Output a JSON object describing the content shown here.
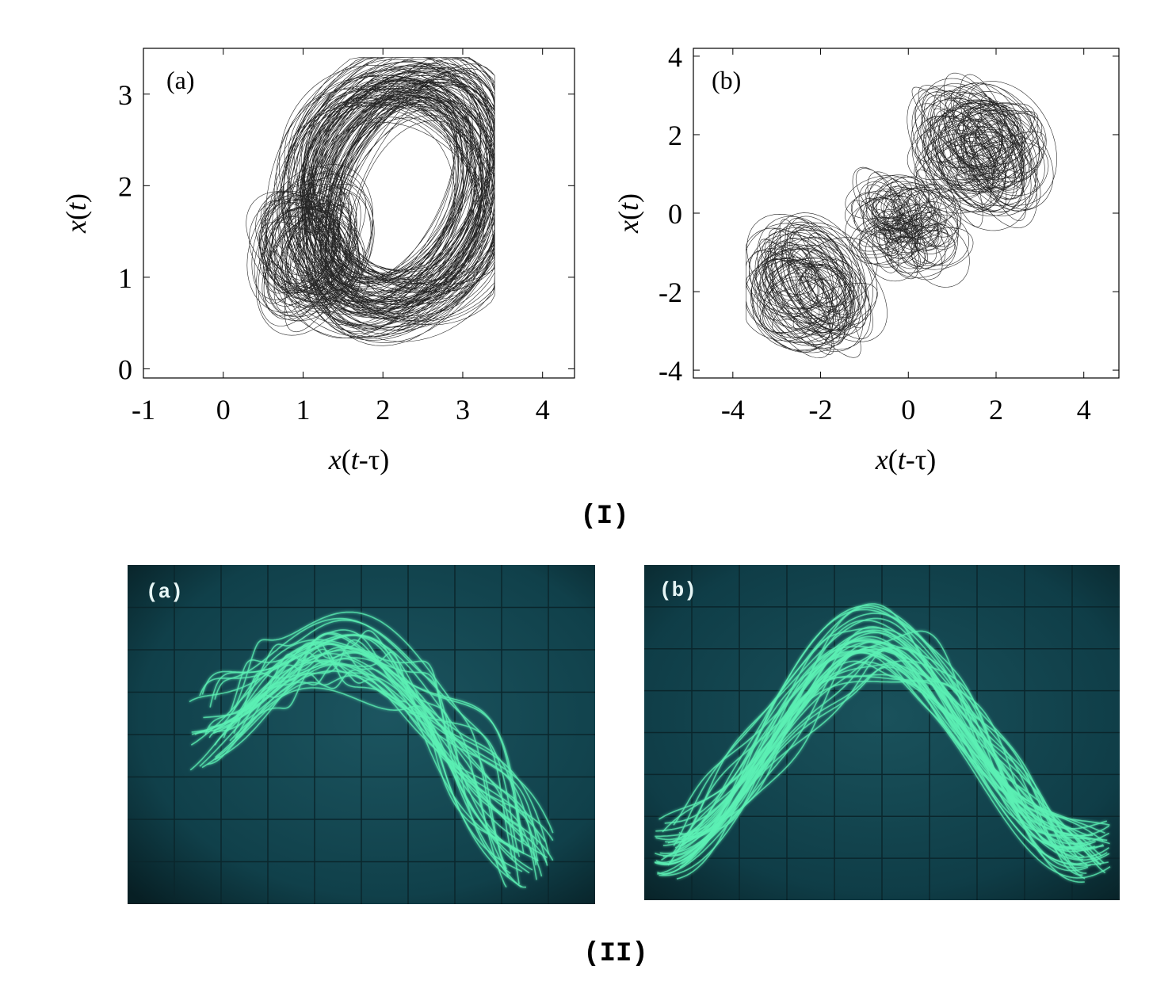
{
  "figure": {
    "part_I_label": "(I)",
    "part_II_label": "(II)"
  },
  "chart_data": [
    {
      "type": "line",
      "panel_label": "(a)",
      "xlabel_parts": [
        "x",
        "(",
        "t",
        "-τ)"
      ],
      "ylabel_parts": [
        "x",
        "(",
        "t",
        ")"
      ],
      "xlim": [
        -1,
        4.4
      ],
      "ylim": [
        -0.1,
        3.5
      ],
      "xticks": [
        "-1",
        "0",
        "1",
        "2",
        "3",
        "4"
      ],
      "xtick_values": [
        -1,
        0,
        1,
        2,
        3,
        4
      ],
      "yticks": [
        "0",
        "1",
        "2",
        "3"
      ],
      "ytick_values": [
        0,
        1,
        2,
        3
      ],
      "grid": false,
      "series": [
        {
          "values": []
        }
      ],
      "attractor_extent": {
        "x": [
          0.0,
          3.4
        ],
        "y": [
          0.1,
          3.4
        ]
      }
    },
    {
      "type": "line",
      "panel_label": "(b)",
      "xlabel_parts": [
        "x",
        "(",
        "t",
        "-τ)"
      ],
      "ylabel_parts": [
        "x",
        "(",
        "t",
        ")"
      ],
      "xlim": [
        -4.9,
        4.8
      ],
      "ylim": [
        -4.2,
        4.2
      ],
      "xticks": [
        "-4",
        "-2",
        "0",
        "2",
        "4"
      ],
      "xtick_values": [
        -4,
        -2,
        0,
        2,
        4
      ],
      "yticks": [
        "-4",
        "-2",
        "0",
        "2",
        "4"
      ],
      "ytick_values": [
        -4,
        -2,
        0,
        2,
        4
      ],
      "grid": false,
      "series": [
        {
          "values": []
        }
      ],
      "attractor_extent": {
        "x": [
          -3.7,
          3.5
        ],
        "y": [
          -3.7,
          3.7
        ]
      }
    }
  ],
  "oscilloscope": [
    {
      "panel_label": "(a)",
      "trace_color": "#5cf0b4",
      "screen_color": "#0f3c44"
    },
    {
      "panel_label": "(b)",
      "trace_color": "#5cf0b4",
      "screen_color": "#0f3c44"
    }
  ]
}
